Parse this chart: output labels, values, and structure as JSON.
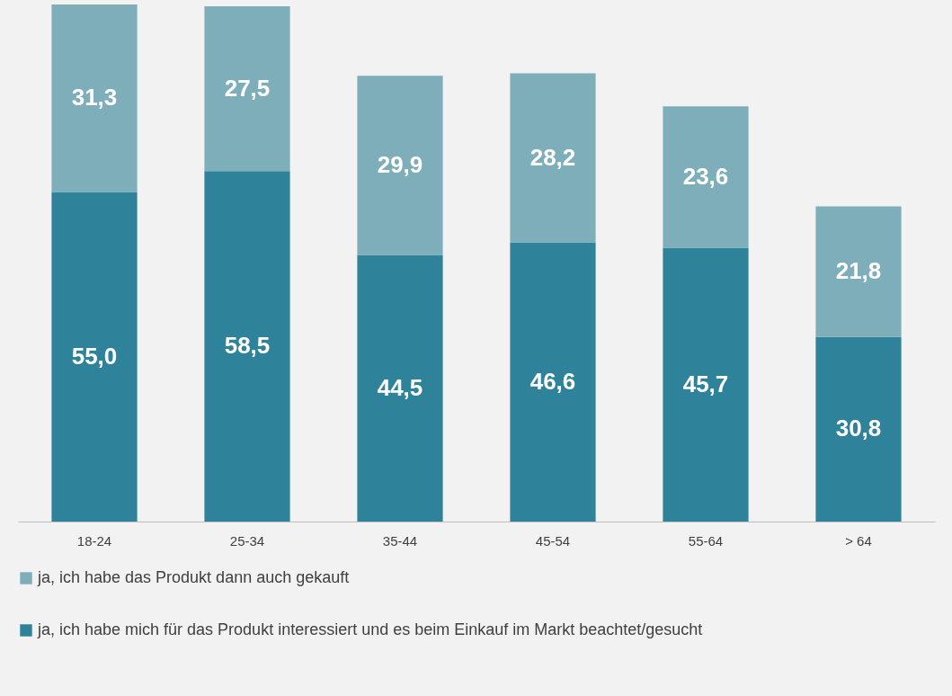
{
  "chart_data": {
    "type": "bar",
    "stacked": true,
    "legend": "bottom",
    "grid": false,
    "categories": [
      "18-24",
      "25-34",
      "35-44",
      "45-54",
      "55-64",
      "> 64"
    ],
    "series": [
      {
        "name": "ja, ich habe mich für das Produkt interessiert und es beim Einkauf im Markt beachtet/gesucht",
        "color": "#2e8299",
        "values": [
          55.0,
          58.5,
          44.5,
          46.6,
          45.7,
          30.8
        ],
        "value_labels": [
          "55,0",
          "58,5",
          "44,5",
          "46,6",
          "45,7",
          "30,8"
        ]
      },
      {
        "name": "ja, ich habe das Produkt dann auch gekauft",
        "color": "#7faebb",
        "values": [
          31.3,
          27.5,
          29.9,
          28.2,
          23.6,
          21.8
        ],
        "value_labels": [
          "31,3",
          "27,5",
          "29,9",
          "28,2",
          "23,6",
          "21,8"
        ]
      }
    ]
  }
}
